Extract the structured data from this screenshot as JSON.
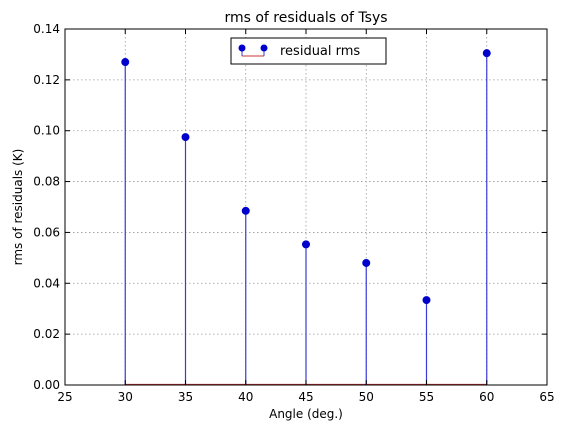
{
  "chart_data": {
    "type": "scatter",
    "style": "stem",
    "title": "rms of residuals of Tsys",
    "xlabel": "Angle (deg.)",
    "ylabel": "rms of residuals (K)",
    "xlim": [
      25,
      65
    ],
    "ylim": [
      0.0,
      0.14
    ],
    "xticks": [
      25,
      30,
      35,
      40,
      45,
      50,
      55,
      60,
      65
    ],
    "xtick_labels": [
      "25",
      "30",
      "35",
      "40",
      "45",
      "50",
      "55",
      "60",
      "65"
    ],
    "yticks": [
      0.0,
      0.02,
      0.04,
      0.06,
      0.08,
      0.1,
      0.12,
      0.14
    ],
    "ytick_labels": [
      "0.00",
      "0.02",
      "0.04",
      "0.06",
      "0.08",
      "0.10",
      "0.12",
      "0.14"
    ],
    "grid": true,
    "legend_position": "top-center",
    "series": [
      {
        "name": "residual rms",
        "x": [
          30,
          35,
          40,
          45,
          50,
          55,
          60
        ],
        "y": [
          0.127,
          0.0975,
          0.0685,
          0.0553,
          0.048,
          0.0334,
          0.1305
        ],
        "marker_color": "#0000cc",
        "stem_color": "#3b3bd9",
        "baseline_color": "#cc3333"
      }
    ]
  }
}
